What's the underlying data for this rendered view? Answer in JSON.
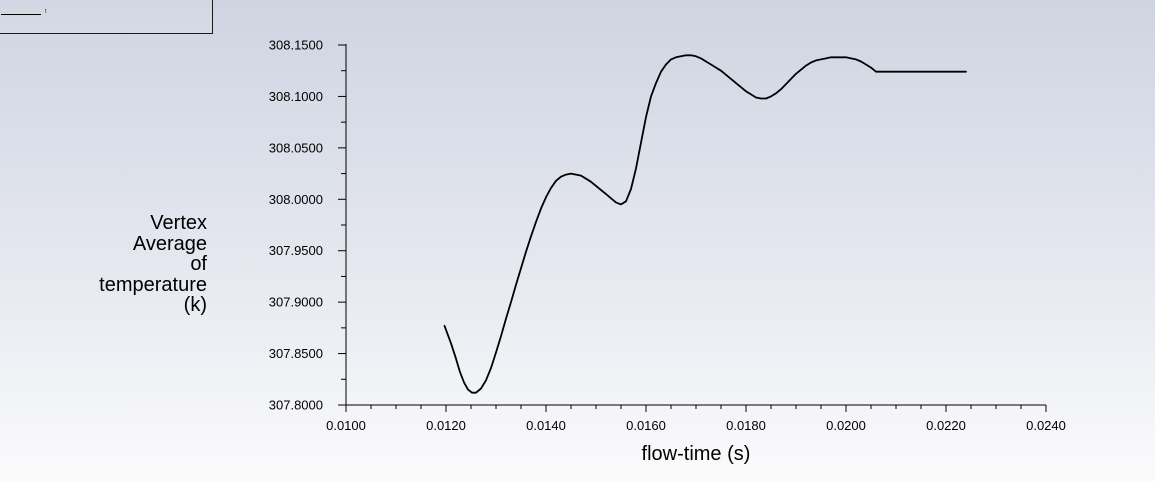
{
  "legend": {
    "entries": [
      {
        "label": "t",
        "color": "#000000"
      }
    ]
  },
  "chart_data": {
    "type": "line",
    "title": "",
    "xlabel": "flow-time (s)",
    "ylabel_lines": [
      "Vertex",
      "Average",
      "of",
      "temperature",
      "(k)"
    ],
    "xlim": [
      0.01,
      0.024
    ],
    "ylim": [
      307.8,
      308.15
    ],
    "xticks": [
      "0.0100",
      "0.0120",
      "0.0140",
      "0.0160",
      "0.0180",
      "0.0200",
      "0.0220",
      "0.0240"
    ],
    "yticks": [
      "307.8000",
      "307.8500",
      "307.9000",
      "307.9500",
      "308.0000",
      "308.0500",
      "308.1000",
      "308.1500"
    ],
    "grid": false,
    "legend_position": "top-left",
    "line_color": "#000000",
    "series": [
      {
        "name": "t",
        "x": [
          0.01197,
          0.0121,
          0.0122,
          0.01228,
          0.01236,
          0.01244,
          0.01252,
          0.0126,
          0.0127,
          0.0128,
          0.0129,
          0.013,
          0.0131,
          0.0132,
          0.0133,
          0.0134,
          0.0135,
          0.0136,
          0.0137,
          0.0138,
          0.0139,
          0.014,
          0.0141,
          0.0142,
          0.0143,
          0.0144,
          0.0145,
          0.0146,
          0.0147,
          0.0148,
          0.0149,
          0.015,
          0.0151,
          0.0152,
          0.0153,
          0.0154,
          0.0155,
          0.0156,
          0.0157,
          0.0158,
          0.0159,
          0.016,
          0.0161,
          0.0162,
          0.0163,
          0.0164,
          0.0165,
          0.0166,
          0.0167,
          0.0168,
          0.0169,
          0.017,
          0.0171,
          0.0172,
          0.0173,
          0.0174,
          0.0175,
          0.0176,
          0.0177,
          0.0178,
          0.0179,
          0.018,
          0.0181,
          0.0182,
          0.0183,
          0.0184,
          0.0185,
          0.0186,
          0.0187,
          0.0188,
          0.0189,
          0.019,
          0.0191,
          0.0192,
          0.0193,
          0.0194,
          0.0195,
          0.0196,
          0.0197,
          0.0198,
          0.0199,
          0.02,
          0.0201,
          0.0202,
          0.0203,
          0.0204,
          0.0205,
          0.0206,
          0.0207,
          0.0208,
          0.0209,
          0.021,
          0.0211,
          0.0212,
          0.0213,
          0.0214,
          0.0215,
          0.0216,
          0.0217,
          0.0218,
          0.0219,
          0.022,
          0.0221,
          0.0222,
          0.0223,
          0.0224
        ],
        "y": [
          307.877,
          307.86,
          307.845,
          307.832,
          307.822,
          307.815,
          307.812,
          307.812,
          307.816,
          307.824,
          307.836,
          307.851,
          307.867,
          307.884,
          307.9,
          307.917,
          307.933,
          307.949,
          307.964,
          307.978,
          307.991,
          308.002,
          308.011,
          308.018,
          308.022,
          308.024,
          308.025,
          308.024,
          308.023,
          308.02,
          308.017,
          308.013,
          308.009,
          308.005,
          308.001,
          307.997,
          307.995,
          307.998,
          308.01,
          308.03,
          308.055,
          308.08,
          308.1,
          308.113,
          308.124,
          308.131,
          308.136,
          308.138,
          308.139,
          308.14,
          308.14,
          308.139,
          308.137,
          308.134,
          308.131,
          308.128,
          308.125,
          308.121,
          308.117,
          308.113,
          308.109,
          308.105,
          308.102,
          308.099,
          308.098,
          308.098,
          308.1,
          308.103,
          308.107,
          308.112,
          308.117,
          308.122,
          308.126,
          308.13,
          308.133,
          308.135,
          308.136,
          308.137,
          308.138,
          308.138,
          308.138,
          308.138,
          308.137,
          308.136,
          308.134,
          308.131,
          308.128,
          308.124,
          308.124,
          308.124,
          308.124,
          308.124,
          308.124,
          308.124,
          308.124,
          308.124,
          308.124,
          308.124,
          308.124,
          308.124,
          308.124,
          308.124,
          308.124,
          308.124,
          308.124,
          308.124
        ]
      }
    ]
  }
}
